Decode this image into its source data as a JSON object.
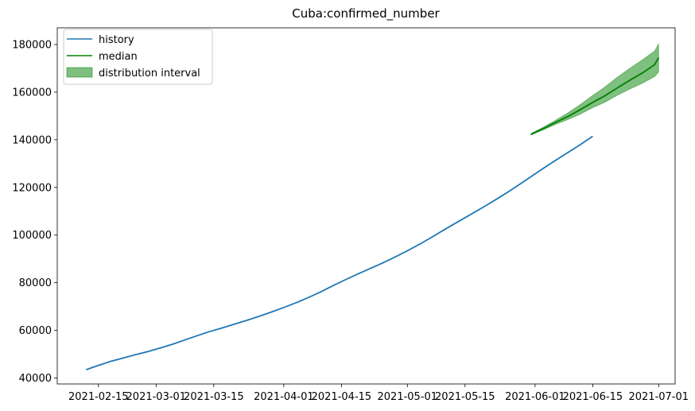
{
  "chart_data": {
    "type": "line",
    "title": "Cuba:confirmed_number",
    "xlabel": "",
    "ylabel": "",
    "x_axis_type": "date",
    "xlim": [
      "2021-02-05",
      "2021-07-05"
    ],
    "ylim": [
      37500,
      187000
    ],
    "x_ticks": [
      {
        "date": "2021-02-15",
        "label": "2021-02-15"
      },
      {
        "date": "2021-03-01",
        "label": "2021-03-01"
      },
      {
        "date": "2021-03-15",
        "label": "2021-03-15"
      },
      {
        "date": "2021-04-01",
        "label": "2021-04-01"
      },
      {
        "date": "2021-04-15",
        "label": "2021-04-15"
      },
      {
        "date": "2021-05-01",
        "label": "2021-05-01"
      },
      {
        "date": "2021-05-15",
        "label": "2021-05-15"
      },
      {
        "date": "2021-06-01",
        "label": "2021-06-01"
      },
      {
        "date": "2021-06-15",
        "label": "2021-06-15"
      },
      {
        "date": "2021-07-01",
        "label": "2021-07-01"
      }
    ],
    "y_ticks": [
      40000,
      60000,
      80000,
      100000,
      120000,
      140000,
      160000,
      180000
    ],
    "legend": {
      "placement": "top-left",
      "entries": [
        "history",
        "median",
        "distribution interval"
      ]
    },
    "grid": false,
    "series": [
      {
        "name": "history",
        "color": "#1f77b4",
        "points": [
          [
            "2021-02-12",
            43500
          ],
          [
            "2021-02-15",
            45300
          ],
          [
            "2021-02-18",
            47000
          ],
          [
            "2021-02-21",
            48400
          ],
          [
            "2021-02-24",
            49800
          ],
          [
            "2021-02-27",
            51100
          ],
          [
            "2021-03-02",
            52600
          ],
          [
            "2021-03-05",
            54200
          ],
          [
            "2021-03-08",
            56000
          ],
          [
            "2021-03-11",
            57800
          ],
          [
            "2021-03-14",
            59500
          ],
          [
            "2021-03-17",
            61000
          ],
          [
            "2021-03-20",
            62600
          ],
          [
            "2021-03-23",
            64200
          ],
          [
            "2021-03-26",
            65900
          ],
          [
            "2021-03-29",
            67700
          ],
          [
            "2021-04-01",
            69600
          ],
          [
            "2021-04-04",
            71600
          ],
          [
            "2021-04-07",
            73800
          ],
          [
            "2021-04-10",
            76200
          ],
          [
            "2021-04-13",
            78800
          ],
          [
            "2021-04-16",
            81300
          ],
          [
            "2021-04-19",
            83700
          ],
          [
            "2021-04-22",
            86000
          ],
          [
            "2021-04-25",
            88300
          ],
          [
            "2021-04-28",
            90800
          ],
          [
            "2021-05-01",
            93400
          ],
          [
            "2021-05-04",
            96200
          ],
          [
            "2021-05-07",
            99200
          ],
          [
            "2021-05-10",
            102300
          ],
          [
            "2021-05-13",
            105300
          ],
          [
            "2021-05-16",
            108300
          ],
          [
            "2021-05-19",
            111300
          ],
          [
            "2021-05-22",
            114400
          ],
          [
            "2021-05-25",
            117600
          ],
          [
            "2021-05-28",
            121000
          ],
          [
            "2021-05-31",
            124500
          ],
          [
            "2021-06-03",
            128000
          ],
          [
            "2021-06-06",
            131400
          ],
          [
            "2021-06-09",
            134700
          ],
          [
            "2021-06-12",
            138000
          ],
          [
            "2021-06-15",
            141500
          ]
        ]
      },
      {
        "name": "median",
        "color": "#008000",
        "points": [
          [
            "2021-05-31",
            142300
          ],
          [
            "2021-06-03",
            144700
          ],
          [
            "2021-06-06",
            147300
          ],
          [
            "2021-06-09",
            149800
          ],
          [
            "2021-06-12",
            152700
          ],
          [
            "2021-06-15",
            155700
          ],
          [
            "2021-06-18",
            158500
          ],
          [
            "2021-06-21",
            161800
          ],
          [
            "2021-06-24",
            165000
          ],
          [
            "2021-06-27",
            168000
          ],
          [
            "2021-06-30",
            171500
          ],
          [
            "2021-07-01",
            174500
          ]
        ]
      }
    ],
    "interval": {
      "name": "distribution interval",
      "color": "#008000",
      "x": [
        "2021-05-31",
        "2021-06-03",
        "2021-06-06",
        "2021-06-09",
        "2021-06-12",
        "2021-06-15",
        "2021-06-18",
        "2021-06-21",
        "2021-06-24",
        "2021-06-27",
        "2021-06-30",
        "2021-07-01"
      ],
      "lower": [
        142000,
        144200,
        146500,
        148500,
        150800,
        153500,
        155800,
        158700,
        161300,
        163700,
        166500,
        168500
      ],
      "upper": [
        142600,
        145300,
        148200,
        151300,
        154800,
        158600,
        162200,
        166300,
        170000,
        173500,
        177200,
        180200
      ]
    }
  }
}
